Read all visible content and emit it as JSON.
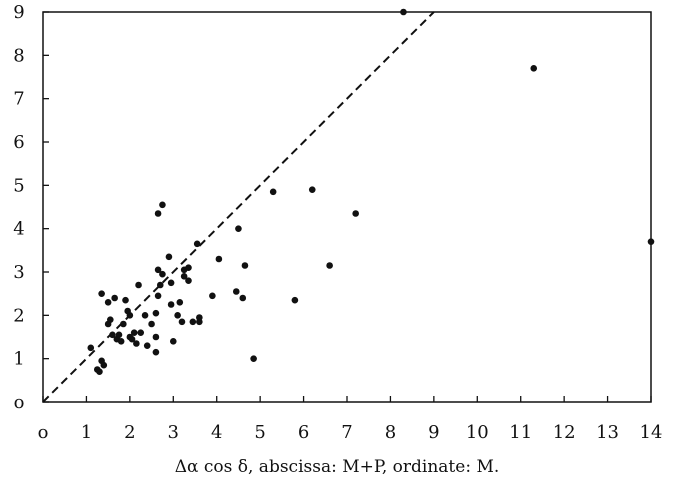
{
  "chart_data": {
    "type": "scatter",
    "title": "",
    "xlabel": "Δα cos δ, abscissa: M+P, ordinate: M.",
    "ylabel": "",
    "xlim": [
      0,
      14
    ],
    "ylim": [
      0,
      9
    ],
    "xticks": [
      "o",
      "1",
      "2",
      "3",
      "4",
      "5",
      "6",
      "7",
      "8",
      "9",
      "10",
      "11",
      "12",
      "13",
      "14"
    ],
    "yticks": [
      "o",
      "1",
      "2",
      "3",
      "4",
      "5",
      "6",
      "7",
      "8",
      "9"
    ],
    "reference_line": {
      "style": "dashed",
      "from": [
        0,
        0
      ],
      "to": [
        9,
        9
      ]
    },
    "grid": false,
    "marker_color": "#111111",
    "points": [
      [
        1.1,
        1.25
      ],
      [
        1.25,
        0.75
      ],
      [
        1.3,
        0.7
      ],
      [
        1.35,
        0.95
      ],
      [
        1.4,
        0.85
      ],
      [
        1.35,
        2.5
      ],
      [
        1.5,
        2.3
      ],
      [
        1.5,
        1.8
      ],
      [
        1.55,
        1.9
      ],
      [
        1.6,
        1.55
      ],
      [
        1.65,
        2.4
      ],
      [
        1.7,
        1.45
      ],
      [
        1.75,
        1.55
      ],
      [
        1.8,
        1.4
      ],
      [
        1.85,
        1.8
      ],
      [
        1.9,
        2.35
      ],
      [
        1.95,
        2.1
      ],
      [
        2.0,
        2.0
      ],
      [
        2.0,
        1.5
      ],
      [
        2.05,
        1.45
      ],
      [
        2.1,
        1.6
      ],
      [
        2.15,
        1.35
      ],
      [
        2.2,
        2.7
      ],
      [
        2.25,
        1.6
      ],
      [
        2.35,
        2.0
      ],
      [
        2.4,
        1.3
      ],
      [
        2.5,
        1.8
      ],
      [
        2.6,
        1.15
      ],
      [
        2.6,
        1.5
      ],
      [
        2.6,
        2.05
      ],
      [
        2.65,
        2.45
      ],
      [
        2.65,
        3.05
      ],
      [
        2.7,
        2.7
      ],
      [
        2.75,
        2.95
      ],
      [
        2.65,
        4.35
      ],
      [
        2.75,
        4.55
      ],
      [
        2.9,
        3.35
      ],
      [
        2.95,
        2.75
      ],
      [
        2.95,
        2.25
      ],
      [
        3.0,
        1.4
      ],
      [
        3.1,
        2.0
      ],
      [
        3.15,
        2.3
      ],
      [
        3.2,
        1.85
      ],
      [
        3.25,
        2.9
      ],
      [
        3.25,
        3.05
      ],
      [
        3.35,
        2.8
      ],
      [
        3.35,
        3.1
      ],
      [
        3.45,
        1.85
      ],
      [
        3.6,
        1.85
      ],
      [
        3.6,
        1.95
      ],
      [
        3.55,
        3.65
      ],
      [
        3.9,
        2.45
      ],
      [
        4.05,
        3.3
      ],
      [
        4.45,
        2.55
      ],
      [
        4.5,
        4.0
      ],
      [
        4.6,
        2.4
      ],
      [
        4.65,
        3.15
      ],
      [
        4.85,
        1.0
      ],
      [
        5.3,
        4.85
      ],
      [
        5.8,
        2.35
      ],
      [
        6.2,
        4.9
      ],
      [
        6.6,
        3.15
      ],
      [
        7.2,
        4.35
      ],
      [
        8.3,
        9.0
      ],
      [
        11.3,
        7.7
      ],
      [
        14.0,
        3.7
      ]
    ]
  }
}
